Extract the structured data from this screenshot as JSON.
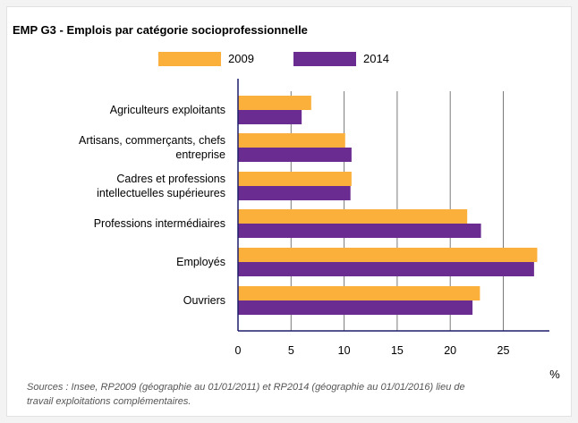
{
  "chart_data": {
    "type": "bar",
    "orientation": "horizontal",
    "title": "EMP G3 - Emplois par catégorie socioprofessionnelle",
    "categories": [
      [
        "Agriculteurs exploitants"
      ],
      [
        "Artisans, commerçants, chefs",
        "entreprise"
      ],
      [
        "Cadres et professions",
        "intellectuelles supérieures"
      ],
      [
        "Professions intermédiaires"
      ],
      [
        "Employés"
      ],
      [
        "Ouvriers"
      ]
    ],
    "series": [
      {
        "name": "2009",
        "color": "#FBB03B",
        "values": [
          6.9,
          10.1,
          10.7,
          21.6,
          28.2,
          22.8
        ]
      },
      {
        "name": "2014",
        "color": "#6B2C91",
        "values": [
          6.0,
          10.7,
          10.6,
          22.9,
          27.9,
          22.1
        ]
      }
    ],
    "xlim": [
      0,
      29
    ],
    "xticks": [
      0,
      5,
      10,
      15,
      20,
      25
    ],
    "xunit": "%",
    "grid": true,
    "legend_position": "top"
  },
  "source_note": "Sources : Insee, RP2009 (géographie au 01/01/2011) et RP2014 (géographie au 01/01/2016) lieu de travail exploitations complémentaires."
}
